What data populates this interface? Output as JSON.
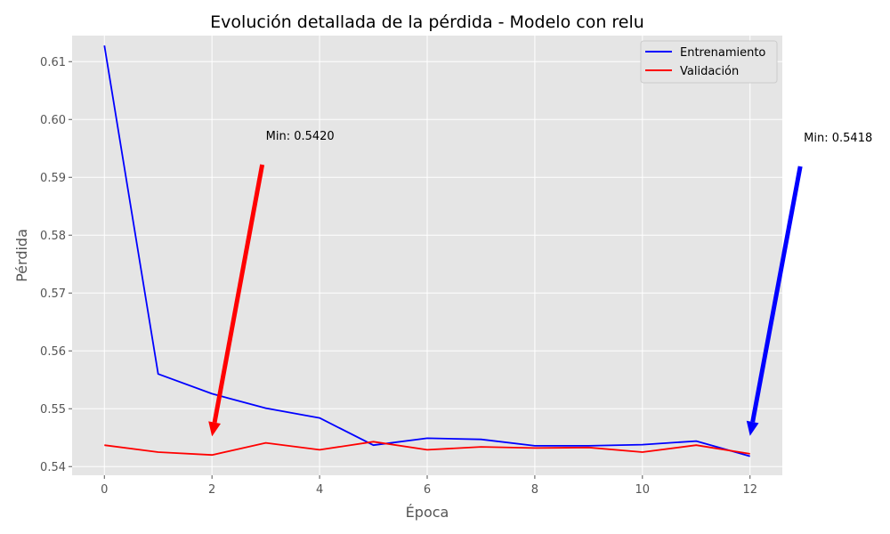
{
  "chart_data": {
    "type": "line",
    "title": "Evolución detallada de la pérdida - Modelo con relu",
    "xlabel": "Época",
    "ylabel": "Pérdida",
    "xlim": [
      -0.6,
      12.6
    ],
    "ylim": [
      0.5385,
      0.6145
    ],
    "xticks": [
      0,
      2,
      4,
      6,
      8,
      10,
      12
    ],
    "xtick_labels": [
      "0",
      "2",
      "4",
      "6",
      "8",
      "10",
      "12"
    ],
    "yticks": [
      0.54,
      0.55,
      0.56,
      0.57,
      0.58,
      0.59,
      0.6,
      0.61
    ],
    "ytick_labels": [
      "0.54",
      "0.55",
      "0.56",
      "0.57",
      "0.58",
      "0.59",
      "0.60",
      "0.61"
    ],
    "grid": true,
    "legend_position": "top-right",
    "x": [
      0,
      1,
      2,
      3,
      4,
      5,
      6,
      7,
      8,
      9,
      10,
      11,
      12
    ],
    "series": [
      {
        "name": "Entrenamiento",
        "color": "#0000ff",
        "values": [
          0.6128,
          0.556,
          0.5526,
          0.5501,
          0.5484,
          0.5437,
          0.5449,
          0.5447,
          0.5436,
          0.5436,
          0.5438,
          0.5444,
          0.5418
        ]
      },
      {
        "name": "Validación",
        "color": "#ff0000",
        "values": [
          0.5437,
          0.5425,
          0.542,
          0.5441,
          0.5429,
          0.5443,
          0.5429,
          0.5434,
          0.5432,
          0.5433,
          0.5425,
          0.5437,
          0.5422
        ]
      }
    ],
    "annotations": [
      {
        "text": "Min: 0.5420",
        "color": "#ff0000",
        "point": [
          2,
          0.5452
        ],
        "text_at": [
          3,
          0.5965
        ]
      },
      {
        "text": "Min: 0.5418",
        "color": "#0000ff",
        "point": [
          12,
          0.5453
        ],
        "text_at": [
          13,
          0.5962
        ]
      }
    ]
  }
}
